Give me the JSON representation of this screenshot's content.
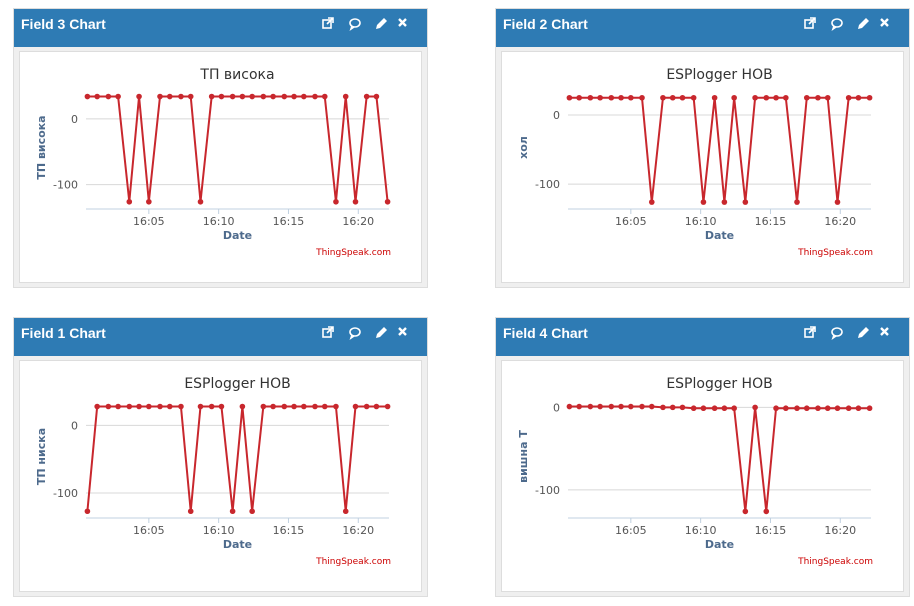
{
  "panels": [
    {
      "header": "Field 3 Chart",
      "chart": {
        "type": "line",
        "title": "ТП висока",
        "xlabel": "Date",
        "ylabel": "ТП висока",
        "credit": "ThingSpeak.com",
        "color": "#c8272d",
        "x": [
          960.6,
          961.3,
          962.1,
          962.8,
          963.6,
          964.3,
          965.0,
          965.8,
          966.5,
          967.3,
          968.0,
          968.7,
          969.5,
          970.2,
          971.0,
          971.7,
          972.4,
          973.2,
          973.9,
          974.7,
          975.4,
          976.1,
          976.9,
          977.6,
          978.4,
          979.1,
          979.8,
          980.6,
          981.3,
          982.1
        ],
        "values": [
          34,
          34,
          34,
          34,
          -126,
          34,
          -126,
          34,
          34,
          34,
          34,
          -126,
          34,
          34,
          34,
          34,
          34,
          34,
          34,
          34,
          34,
          34,
          34,
          34,
          -126,
          34,
          -126,
          34,
          34,
          -126
        ],
        "xlim": [
          960.5,
          982.2
        ],
        "ylim": [
          -137,
          50
        ],
        "yticks": [
          0,
          -100
        ],
        "xticks": [
          {
            "value": 965,
            "label": "16:05"
          },
          {
            "value": 970,
            "label": "16:10"
          },
          {
            "value": 975,
            "label": "16:15"
          },
          {
            "value": 980,
            "label": "16:20"
          }
        ]
      }
    },
    {
      "header": "Field 2 Chart",
      "chart": {
        "type": "line",
        "title": "ESPlogger HOB",
        "xlabel": "Date",
        "ylabel": "хол",
        "credit": "ThingSpeak.com",
        "color": "#c8272d",
        "x": [
          960.6,
          961.3,
          962.1,
          962.8,
          963.6,
          964.3,
          965.0,
          965.8,
          966.5,
          967.3,
          968.0,
          968.7,
          969.5,
          970.2,
          971.0,
          971.7,
          972.4,
          973.2,
          973.9,
          974.7,
          975.4,
          976.1,
          976.9,
          977.6,
          978.4,
          979.1,
          979.8,
          980.6,
          981.3,
          982.1
        ],
        "values": [
          25,
          25,
          25,
          25,
          25,
          25,
          25,
          25,
          -126,
          25,
          25,
          25,
          25,
          -126,
          25,
          -126,
          25,
          -126,
          25,
          25,
          25,
          25,
          -126,
          25,
          25,
          25,
          -126,
          25,
          25,
          25
        ],
        "xlim": [
          960.5,
          982.2
        ],
        "ylim": [
          -136,
          42
        ],
        "yticks": [
          0,
          -100
        ],
        "xticks": [
          {
            "value": 965,
            "label": "16:05"
          },
          {
            "value": 970,
            "label": "16:10"
          },
          {
            "value": 975,
            "label": "16:15"
          },
          {
            "value": 980,
            "label": "16:20"
          }
        ]
      }
    },
    {
      "header": "Field 1 Chart",
      "chart": {
        "type": "line",
        "title": "ESPlogger HOB",
        "xlabel": "Date",
        "ylabel": "ТП ниска",
        "credit": "ThingSpeak.com",
        "color": "#c8272d",
        "x": [
          960.6,
          961.3,
          962.1,
          962.8,
          963.6,
          964.3,
          965.0,
          965.8,
          966.5,
          967.3,
          968.0,
          968.7,
          969.5,
          970.2,
          971.0,
          971.7,
          972.4,
          973.2,
          973.9,
          974.7,
          975.4,
          976.1,
          976.9,
          977.6,
          978.4,
          979.1,
          979.8,
          980.6,
          981.3,
          982.1
        ],
        "values": [
          -127,
          28,
          28,
          28,
          28,
          28,
          28,
          28,
          28,
          28,
          -127,
          28,
          28,
          28,
          -127,
          28,
          -127,
          28,
          28,
          28,
          28,
          28,
          28,
          28,
          28,
          -127,
          28,
          28,
          28,
          28
        ],
        "xlim": [
          960.5,
          982.2
        ],
        "ylim": [
          -137,
          45
        ],
        "yticks": [
          0,
          -100
        ],
        "xticks": [
          {
            "value": 965,
            "label": "16:05"
          },
          {
            "value": 970,
            "label": "16:10"
          },
          {
            "value": 975,
            "label": "16:15"
          },
          {
            "value": 980,
            "label": "16:20"
          }
        ]
      }
    },
    {
      "header": "Field 4 Chart",
      "chart": {
        "type": "line",
        "title": "ESPlogger HOB",
        "xlabel": "Date",
        "ylabel": "вишна Т",
        "credit": "ThingSpeak.com",
        "color": "#c8272d",
        "x": [
          960.6,
          961.3,
          962.1,
          962.8,
          963.6,
          964.3,
          965.0,
          965.8,
          966.5,
          967.3,
          968.0,
          968.7,
          969.5,
          970.2,
          971.0,
          971.7,
          972.4,
          973.2,
          973.9,
          974.7,
          975.4,
          976.1,
          976.9,
          977.6,
          978.4,
          979.1,
          979.8,
          980.6,
          981.3,
          982.1
        ],
        "values": [
          1,
          1,
          1,
          1,
          1,
          1,
          1,
          1,
          1,
          0,
          0,
          0,
          -1,
          -1,
          -1,
          -1,
          -1,
          -126,
          0,
          -126,
          -1,
          -1,
          -1,
          -1,
          -1,
          -1,
          -1,
          -1,
          -1,
          -1
        ],
        "xlim": [
          960.5,
          982.2
        ],
        "ylim": [
          -134,
          15
        ],
        "yticks": [
          0,
          -100
        ],
        "xticks": [
          {
            "value": 965,
            "label": "16:05"
          },
          {
            "value": 970,
            "label": "16:10"
          },
          {
            "value": 975,
            "label": "16:15"
          },
          {
            "value": 980,
            "label": "16:20"
          }
        ]
      }
    }
  ]
}
